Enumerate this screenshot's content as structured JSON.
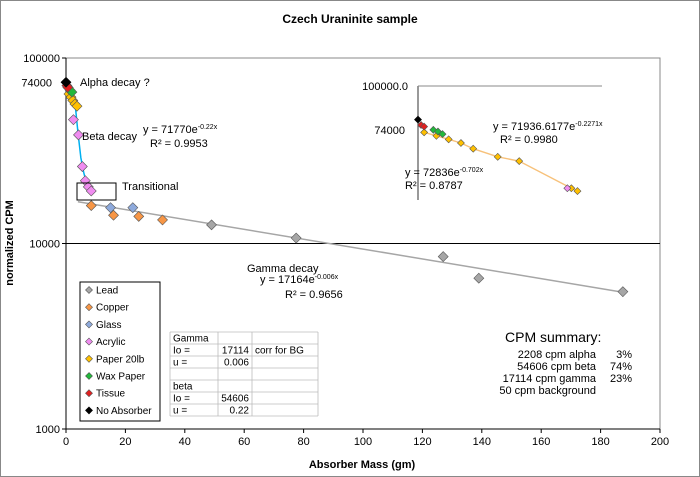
{
  "chart_data": {
    "type": "scatter",
    "title": "Czech Uraninite sample",
    "xlabel": "Absorber Mass (gm)",
    "ylabel": "normalized CPM",
    "xlim": [
      0,
      200
    ],
    "ylim": [
      1000,
      100000
    ],
    "y_scale": "log",
    "x_ticks": [
      "0",
      "20",
      "40",
      "60",
      "80",
      "100",
      "120",
      "140",
      "160",
      "180",
      "200"
    ],
    "y_ticks": [
      "1000",
      "10000",
      "100000"
    ],
    "y_extra_tick": "74000",
    "grid": "horizontal line at 10000 only",
    "legend_position": "bottom-left",
    "series": [
      {
        "name": "Lead",
        "color": "#a6a6a6",
        "points": [
          [
            49.0,
            12600
          ],
          [
            77.5,
            10700
          ],
          [
            127,
            8500
          ],
          [
            139,
            6500
          ],
          [
            187.5,
            5500
          ]
        ]
      },
      {
        "name": "Copper",
        "color": "#f79646",
        "points": [
          [
            8.5,
            16000
          ],
          [
            16.0,
            14200
          ],
          [
            24.5,
            14000
          ],
          [
            32.5,
            13400
          ]
        ]
      },
      {
        "name": "Glass",
        "color": "#8eaadc",
        "points": [
          [
            15.0,
            15600
          ],
          [
            22.5,
            15600
          ]
        ]
      },
      {
        "name": "Acrylic",
        "color": "#f08cf0",
        "points": [
          [
            2.5,
            46500
          ],
          [
            4.2,
            38500
          ],
          [
            5.5,
            26000
          ],
          [
            6.5,
            21800
          ],
          [
            7.5,
            20200
          ],
          [
            8.5,
            19200
          ]
        ]
      },
      {
        "name": "Paper 20lb",
        "color": "#ffc000",
        "points": [
          [
            1.0,
            64000
          ],
          [
            1.7,
            61500
          ],
          [
            2.3,
            59000
          ],
          [
            3.0,
            56500
          ],
          [
            3.7,
            55000
          ]
        ]
      },
      {
        "name": "Wax Paper",
        "color": "#22b83b",
        "points": [
          [
            0.8,
            69000
          ],
          [
            1.4,
            67000
          ],
          [
            2.0,
            65500
          ]
        ]
      },
      {
        "name": "Tissue",
        "color": "#e02020",
        "points": [
          [
            0.3,
            71000
          ],
          [
            0.6,
            69500
          ]
        ]
      },
      {
        "name": "No Absorber",
        "color": "#000000",
        "points": [
          [
            0.0,
            74000
          ]
        ]
      }
    ],
    "fit_lines": [
      {
        "color": "#00b0f0",
        "points": [
          [
            0,
            72836
          ],
          [
            1,
            71500
          ],
          [
            2,
            70000
          ],
          [
            3,
            58000
          ],
          [
            4,
            40000
          ],
          [
            5,
            29000
          ],
          [
            6,
            24000
          ],
          [
            7,
            21000
          ],
          [
            8,
            20000
          ]
        ]
      },
      {
        "color": "#a6a6a6",
        "points": [
          [
            4,
            16800
          ],
          [
            187.5,
            5460
          ]
        ]
      }
    ],
    "annotations": {
      "alpha": "Alpha decay ?",
      "beta": "Beta decay",
      "transitional": "Transitional",
      "gamma": "Gamma  decay",
      "beta_fit_eq": "y = 71770e",
      "beta_fit_exp": "-0.22x",
      "beta_fit_r2": "R² = 0.9953",
      "gamma_fit_eq": "y = 17164e",
      "gamma_fit_exp": "-0.006x",
      "gamma_fit_r2": "R² = 0.9656"
    },
    "inset": {
      "y_tick_top": "100000.0",
      "y_tick_mid": "74000",
      "fit1_eq": "y = 71936.6177e",
      "fit1_exp": "-0.2271x",
      "fit1_r2": "R² = 0.9980",
      "fit2_eq": "y = 72836e",
      "fit2_exp": "-0.702x",
      "fit2_r2": "R² = 0.8787",
      "paper_points": [
        [
          2,
          66000
        ],
        [
          6,
          64000
        ],
        [
          10,
          62000
        ],
        [
          14,
          60000
        ],
        [
          18,
          57000
        ],
        [
          26,
          53000
        ],
        [
          33,
          51000
        ],
        [
          50,
          40000
        ],
        [
          52,
          39000
        ]
      ],
      "wax_points": [
        [
          5,
          67500
        ],
        [
          6.5,
          66500
        ],
        [
          8,
          65000
        ]
      ],
      "red_points": [
        [
          1,
          70500
        ],
        [
          2,
          69500
        ]
      ],
      "black_points": [
        [
          0,
          74000
        ]
      ],
      "acrylic_points": [
        [
          50,
          40000
        ]
      ]
    },
    "table": {
      "rows": [
        [
          "Gamma",
          "",
          ""
        ],
        [
          "Io =",
          "17114",
          "corr for BG"
        ],
        [
          "u =",
          "0.006",
          ""
        ],
        [
          "",
          "",
          ""
        ],
        [
          "beta",
          "",
          ""
        ],
        [
          "Io =",
          "54606",
          ""
        ],
        [
          "u =",
          "0.22",
          ""
        ]
      ]
    },
    "summary": {
      "title": "CPM summary:",
      "rows": [
        [
          "2208 cpm alpha",
          "3%"
        ],
        [
          "54606 cpm beta",
          "74%"
        ],
        [
          "17114 cpm gamma",
          "23%"
        ],
        [
          "50 cpm background",
          ""
        ]
      ]
    }
  }
}
